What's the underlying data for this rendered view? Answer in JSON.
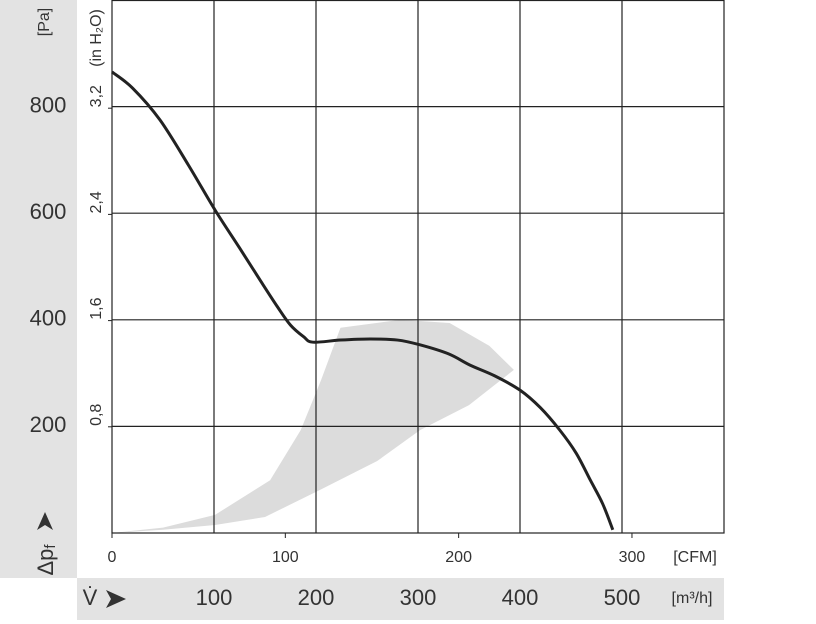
{
  "chart_data": {
    "type": "line",
    "y_label": "[Pa]",
    "y2_label": "(in H₂O)",
    "x_label": "[m³/h]",
    "x2_label": "[CFM]",
    "y_symbol": {
      "main": "Δp",
      "sub": "f"
    },
    "x_symbol": "V̇",
    "xlim": [
      0,
      600
    ],
    "xticks": [
      100,
      200,
      300,
      400,
      500
    ],
    "ylim": [
      0,
      1000
    ],
    "yticks": [
      200,
      400,
      600,
      800
    ],
    "x2lim": [
      0,
      353.1
    ],
    "x2ticks": [
      0,
      100,
      200,
      300
    ],
    "y2lim": [
      0,
      4.015
    ],
    "y2ticks": [
      {
        "value": 0.8,
        "label": "0,8"
      },
      {
        "value": 1.6,
        "label": "1,6"
      },
      {
        "value": 2.4,
        "label": "2,4"
      },
      {
        "value": 3.2,
        "label": "3,2"
      }
    ],
    "grid": true,
    "color": "#222222",
    "x": [
      0,
      20,
      47,
      75,
      101,
      125,
      145,
      162,
      175,
      188,
      197,
      224,
      253,
      280,
      302,
      330,
      351,
      375,
      400,
      420,
      439,
      455,
      469,
      481,
      491
    ],
    "values": [
      865,
      835,
      775,
      690,
      606,
      535,
      475,
      425,
      390,
      368,
      358,
      362,
      364,
      362,
      353,
      336,
      315,
      295,
      268,
      235,
      193,
      150,
      99,
      55,
      6
    ],
    "operating_range": {
      "color": "#dcdcdc",
      "x": [
        0,
        50,
        101,
        150,
        204,
        260,
        302,
        350,
        394,
        370,
        331,
        283,
        224,
        205,
        185,
        155,
        101,
        50,
        0
      ],
      "y": [
        0,
        6,
        15,
        30,
        81,
        135,
        193,
        240,
        306,
        351,
        394,
        400,
        385,
        287,
        193,
        99,
        34,
        10,
        0
      ]
    }
  }
}
